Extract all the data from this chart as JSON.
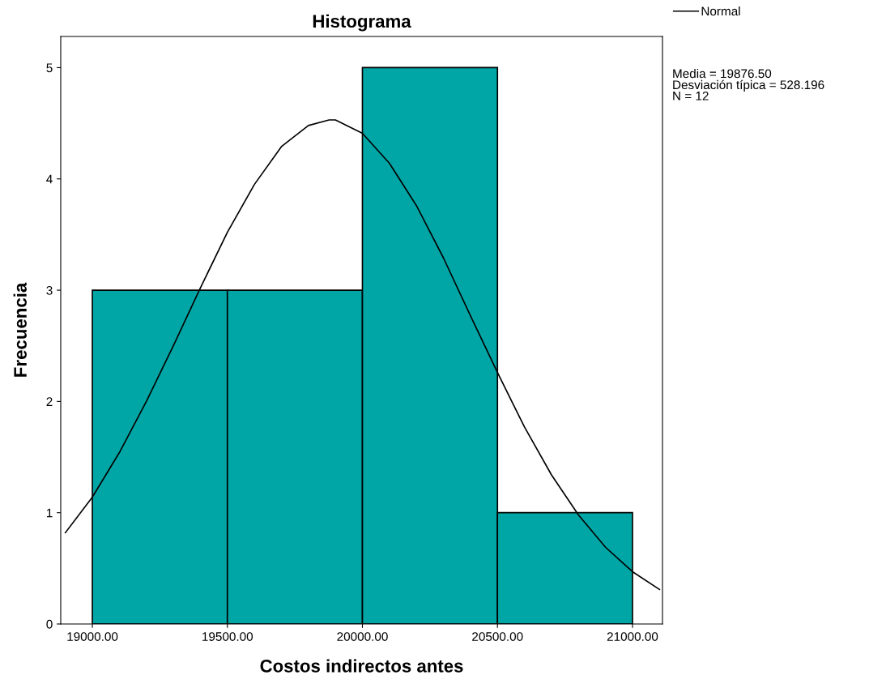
{
  "chart_data": {
    "type": "histogram",
    "title": "Histograma",
    "xlabel": "Costos indirectos antes",
    "ylabel": "Frecuencia",
    "bins": [
      19000,
      19500,
      20000,
      20500,
      21000
    ],
    "values": [
      3,
      3,
      5,
      1
    ],
    "color": "#00a6a6",
    "series": [
      {
        "type": "line",
        "name": "Normal",
        "color": "#000000",
        "x": [
          18900,
          19000,
          19100,
          19200,
          19300,
          19400,
          19500,
          19600,
          19700,
          19800,
          19876.5,
          19900,
          20000,
          20100,
          20200,
          20300,
          20400,
          20500,
          20600,
          20700,
          20800,
          20900,
          21000,
          21100
        ],
        "values": [
          0.82,
          1.14,
          1.54,
          2.0,
          2.5,
          3.02,
          3.52,
          3.95,
          4.29,
          4.48,
          4.53,
          4.53,
          4.41,
          4.14,
          3.76,
          3.29,
          2.77,
          2.26,
          1.77,
          1.34,
          0.98,
          0.69,
          0.47,
          0.31
        ]
      }
    ],
    "xlim": [
      18883,
      21111
    ],
    "ylim": [
      0,
      5.28
    ],
    "xticks": [
      {
        "value": 19000,
        "label": "19000.00"
      },
      {
        "value": 19500,
        "label": "19500.00"
      },
      {
        "value": 20000,
        "label": "20000.00"
      },
      {
        "value": 20500,
        "label": "20500.00"
      },
      {
        "value": 21000,
        "label": "21000.00"
      }
    ],
    "yticks": [
      0,
      1,
      2,
      3,
      4,
      5
    ],
    "annotations": [
      "Media = 19876.50\nDesviación típica = 528.196\nN = 12"
    ],
    "legend": "top right",
    "grid": false
  }
}
